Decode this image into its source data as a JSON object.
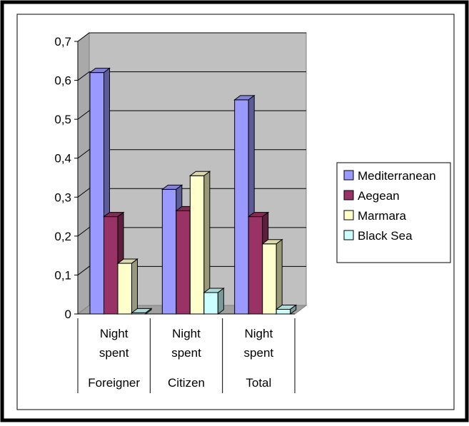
{
  "chart_data": {
    "type": "bar",
    "title": "",
    "xlabel": "",
    "ylabel": "",
    "ylim": [
      0,
      0.7
    ],
    "yticks": [
      "0",
      "0,1",
      "0,2",
      "0,3",
      "0,4",
      "0,5",
      "0,6",
      "0,7"
    ],
    "category_rows": [
      [
        "Night",
        "Night",
        "Night"
      ],
      [
        "spent",
        "spent",
        "spent"
      ],
      [
        "Foreigner",
        "Citizen",
        "Total"
      ]
    ],
    "categories": [
      "Night spent Foreigner",
      "Night spent Citizen",
      "Night spent Total"
    ],
    "series": [
      {
        "name": "Mediterranean",
        "values": [
          0.62,
          0.32,
          0.55
        ],
        "color": "#9999ff"
      },
      {
        "name": "Aegean",
        "values": [
          0.25,
          0.265,
          0.25
        ],
        "color": "#993366"
      },
      {
        "name": "Marmara",
        "values": [
          0.13,
          0.355,
          0.18
        ],
        "color": "#ffffcc"
      },
      {
        "name": "Black Sea",
        "values": [
          0.003,
          0.055,
          0.012
        ],
        "color": "#ccffff"
      }
    ],
    "grid": true,
    "legend_position": "right",
    "plot_background": "#c0c0c0"
  }
}
